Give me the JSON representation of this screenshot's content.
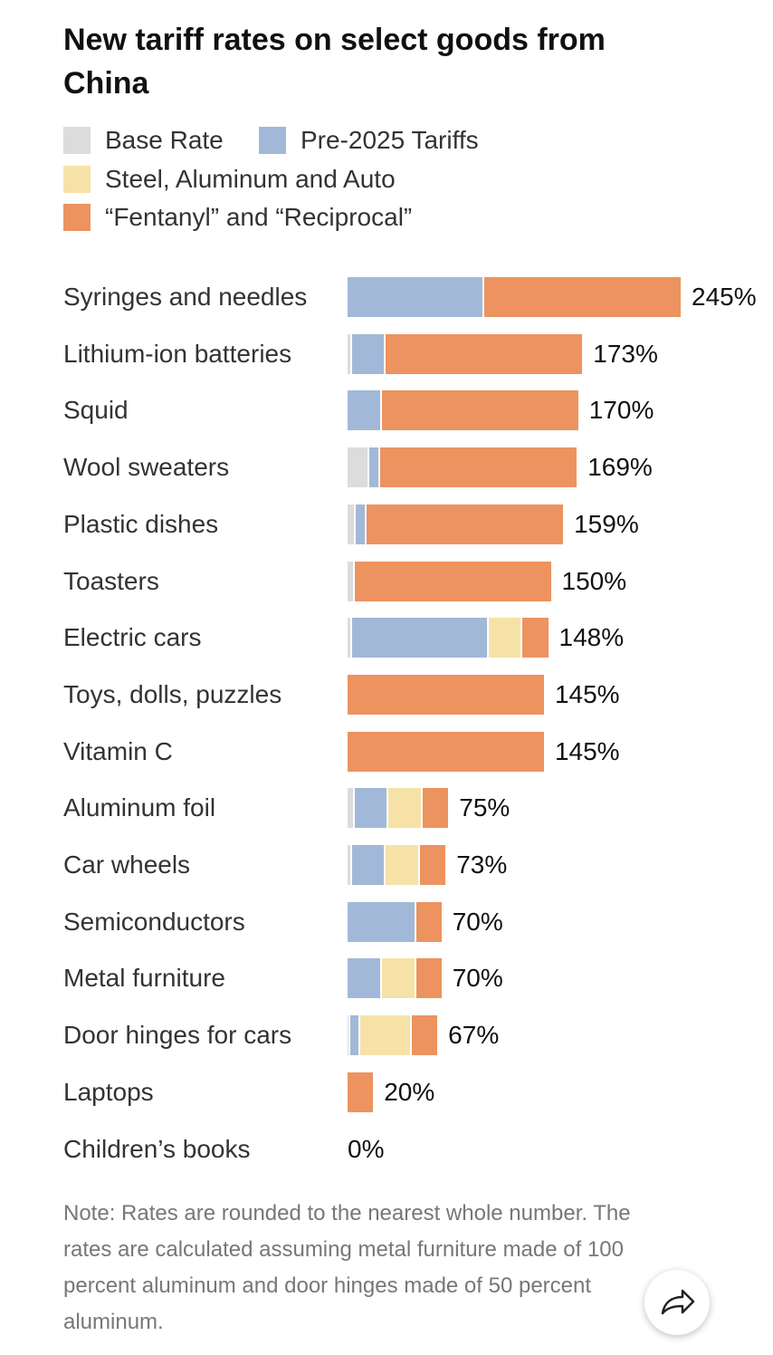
{
  "chart_data": {
    "type": "stacked-bar",
    "title": "New tariff rates on select goods from China",
    "categories": [
      "Syringes and needles",
      "Lithium-ion batteries",
      "Squid",
      "Wool sweaters",
      "Plastic dishes",
      "Toasters",
      "Electric cars",
      "Toys, dolls, puzzles",
      "Vitamin C",
      "Aluminum foil",
      "Car wheels",
      "Semiconductors",
      "Metal furniture",
      "Door hinges for cars",
      "Laptops",
      "Children’s books"
    ],
    "series": [
      {
        "name": "Base Rate",
        "color": "#dcdcdc",
        "values": [
          0,
          3,
          0,
          16,
          6,
          5,
          3,
          0,
          0,
          5,
          3,
          0,
          0,
          2,
          0,
          0
        ]
      },
      {
        "name": "Pre-2025 Tariffs",
        "color": "#a2b8d8",
        "values": [
          100,
          25,
          25,
          8,
          8,
          0,
          100,
          0,
          0,
          25,
          25,
          50,
          25,
          7.5,
          0,
          0
        ]
      },
      {
        "name": "Steel, Aluminum and Auto",
        "color": "#f6e2a6",
        "values": [
          0,
          0,
          0,
          0,
          0,
          0,
          25,
          0,
          0,
          25,
          25,
          0,
          25,
          37.5,
          0,
          0
        ]
      },
      {
        "name": "“Fentanyl” and “Reciprocal”",
        "color": "#ec9360",
        "values": [
          145,
          145,
          145,
          145,
          145,
          145,
          20,
          145,
          145,
          20,
          20,
          20,
          20,
          20,
          20,
          0
        ]
      }
    ],
    "totals": {
      "values": [
        245,
        173,
        170,
        169,
        159,
        150,
        148,
        145,
        145,
        75,
        73,
        70,
        70,
        67,
        20,
        0
      ],
      "value_labels": [
        "245%",
        "173%",
        "170%",
        "169%",
        "159%",
        "150%",
        "148%",
        "145%",
        "145%",
        "75%",
        "73%",
        "70%",
        "70%",
        "67%",
        "20%",
        "0%"
      ]
    },
    "note": "Note: Rates are rounded to the nearest whole number. The rates are calculated assuming metal furniture made of 100 percent aluminum and door hinges made of 50 percent aluminum."
  }
}
